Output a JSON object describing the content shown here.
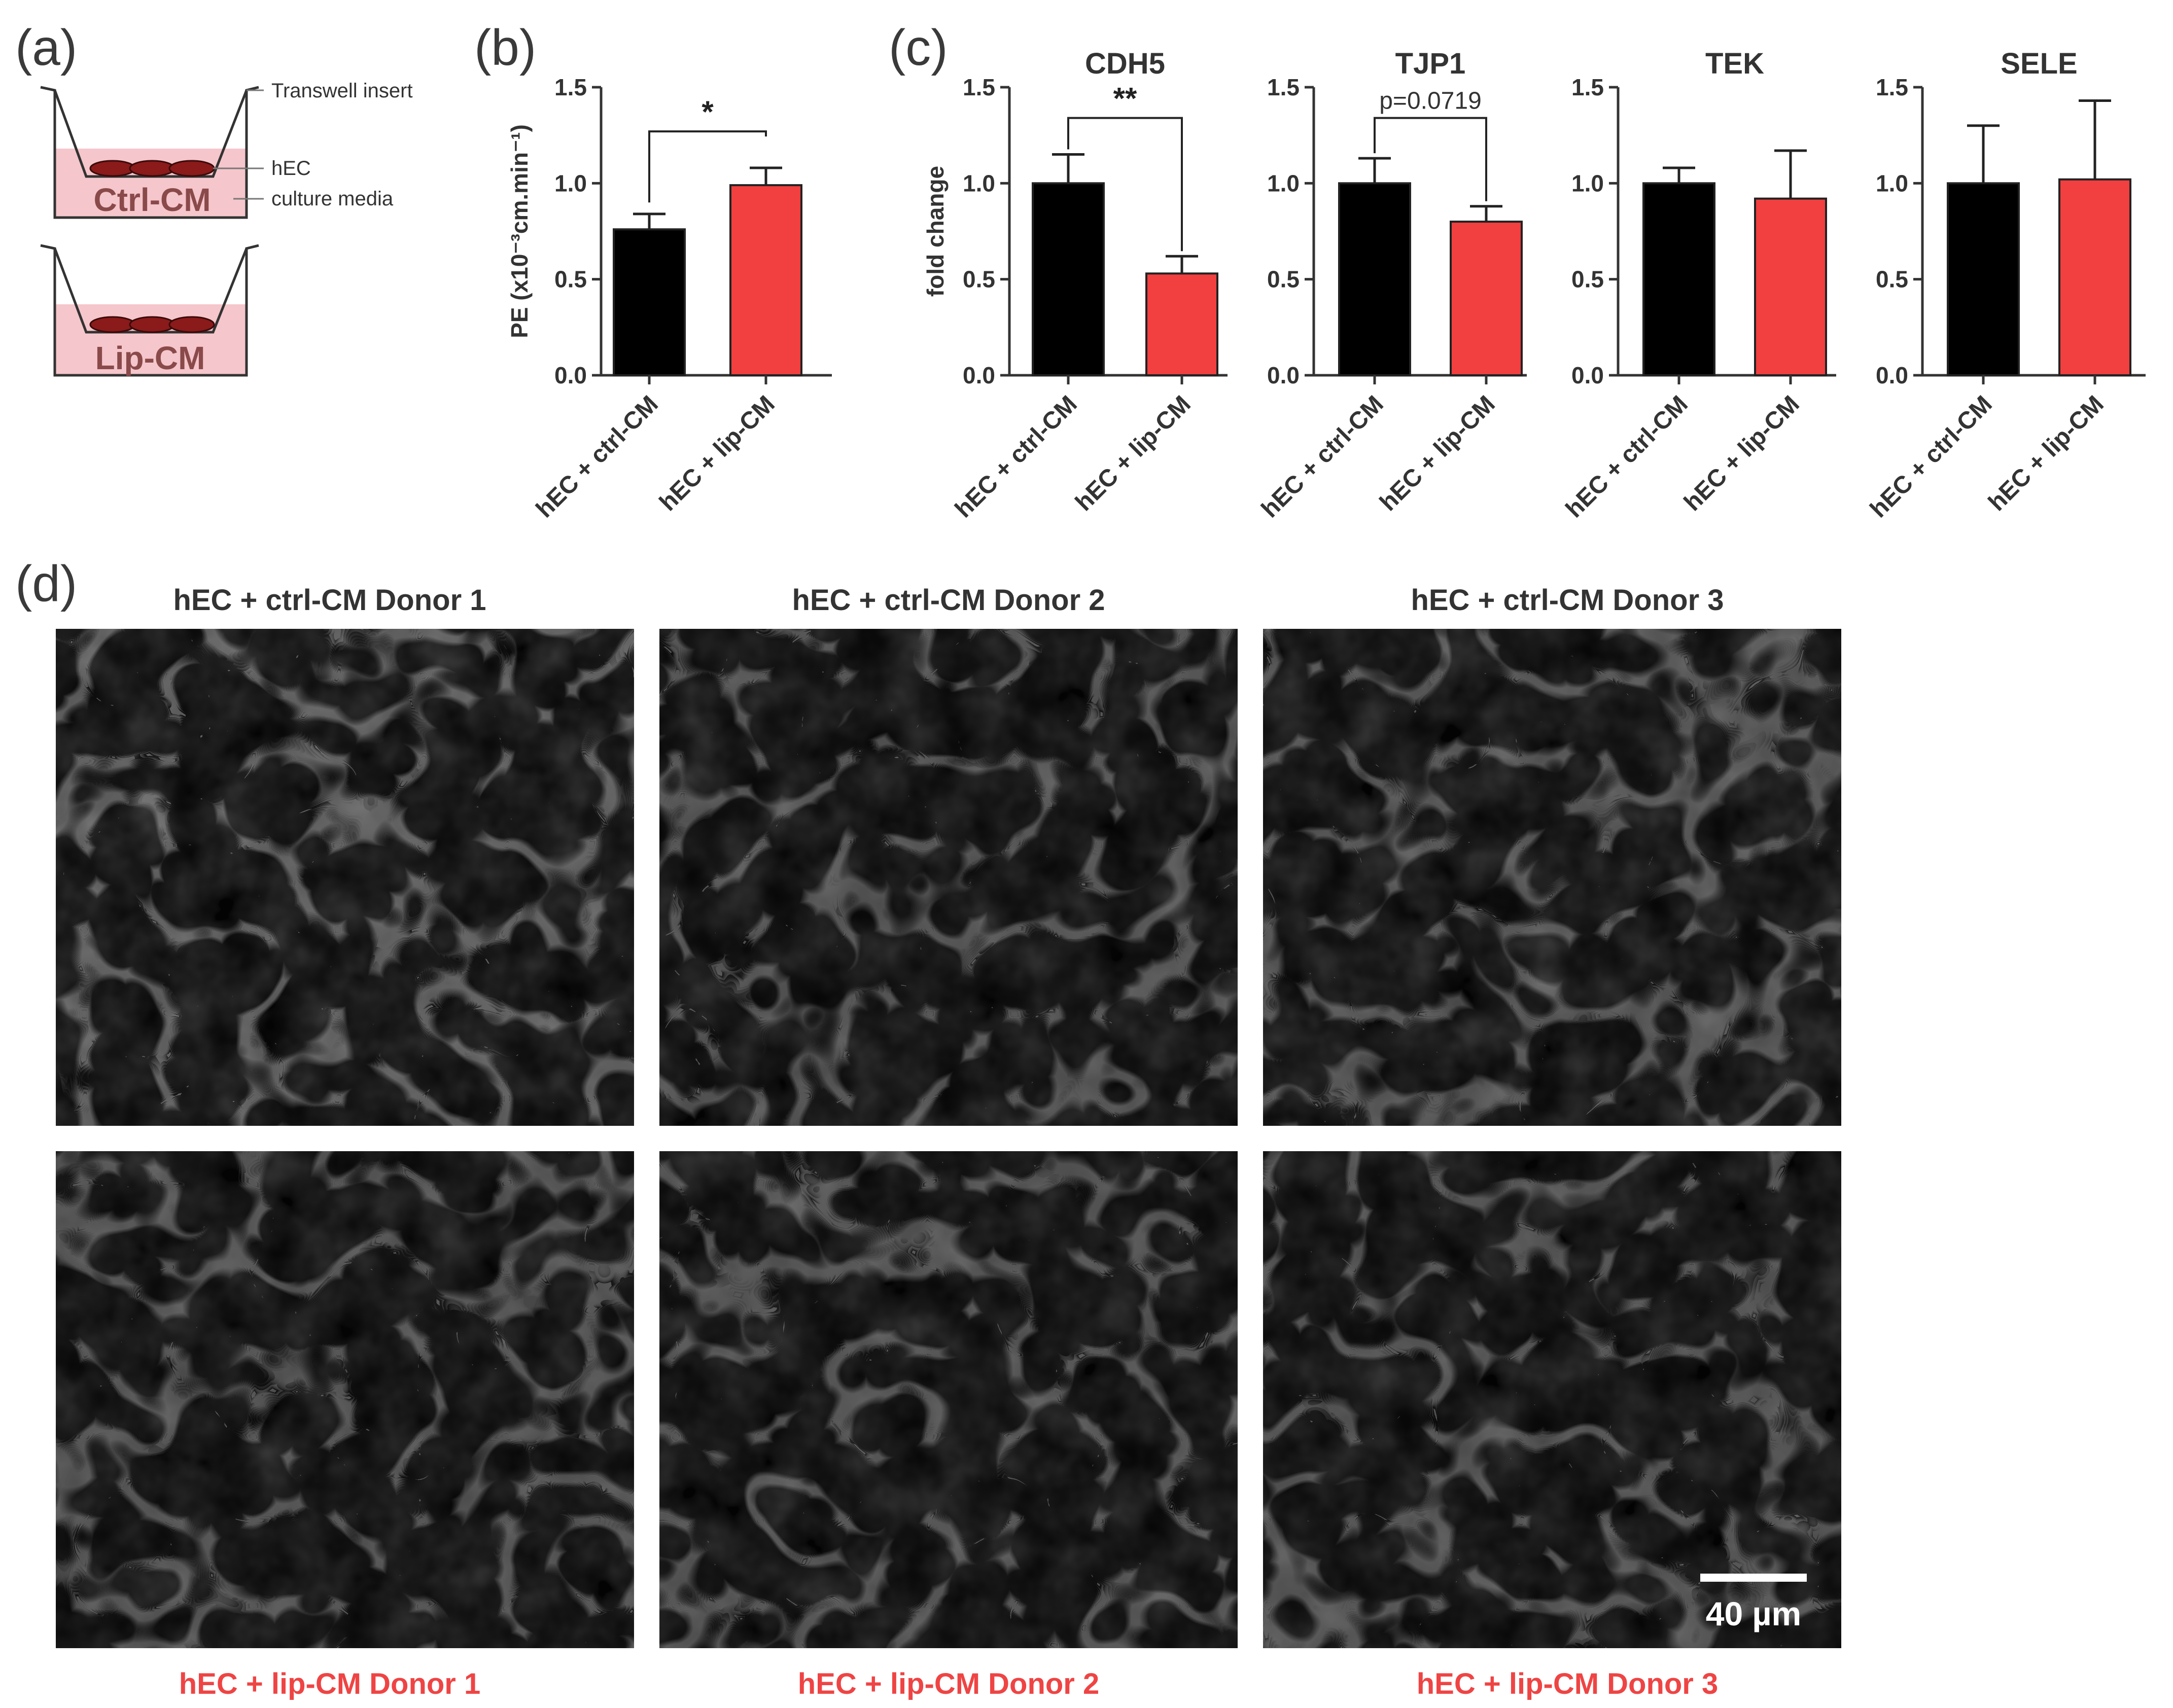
{
  "panels": {
    "a": "(a)",
    "b": "(b)",
    "c": "(c)",
    "d": "(d)"
  },
  "diagram": {
    "transwell_label": "Transwell insert",
    "hec_label": "hEC",
    "media_label": "culture media",
    "top_condition": "Ctrl-CM",
    "bottom_condition": "Lip-CM"
  },
  "colors": {
    "ctrl": "#000000",
    "lip": "#f23f3f",
    "media": "#f5c6cb",
    "cell": "#8b1a1a"
  },
  "chart_data": [
    {
      "type": "bar",
      "panel": "b",
      "ylabel": "PE (x10⁻³cm.min⁻¹)",
      "ylim": [
        0,
        1.5
      ],
      "yticks": [
        "0.0",
        "0.5",
        "1.0",
        "1.5"
      ],
      "categories": [
        "hEC + ctrl-CM",
        "hEC + lip-CM"
      ],
      "values": [
        0.76,
        0.99
      ],
      "errors": [
        0.08,
        0.09
      ],
      "significance": "*"
    },
    {
      "type": "bar",
      "panel": "c",
      "title": "CDH5",
      "ylabel": "fold change",
      "ylim": [
        0,
        1.5
      ],
      "yticks": [
        "0.0",
        "0.5",
        "1.0",
        "1.5"
      ],
      "categories": [
        "hEC + ctrl-CM",
        "hEC + lip-CM"
      ],
      "values": [
        1.0,
        0.53
      ],
      "errors": [
        0.15,
        0.09
      ],
      "significance": "**"
    },
    {
      "type": "bar",
      "panel": "c",
      "title": "TJP1",
      "ylim": [
        0,
        1.5
      ],
      "yticks": [
        "0.0",
        "0.5",
        "1.0",
        "1.5"
      ],
      "categories": [
        "hEC + ctrl-CM",
        "hEC + lip-CM"
      ],
      "values": [
        1.0,
        0.8
      ],
      "errors": [
        0.13,
        0.08
      ],
      "significance": "p=0.0719"
    },
    {
      "type": "bar",
      "panel": "c",
      "title": "TEK",
      "ylim": [
        0,
        1.5
      ],
      "yticks": [
        "0.0",
        "0.5",
        "1.0",
        "1.5"
      ],
      "categories": [
        "hEC + ctrl-CM",
        "hEC + lip-CM"
      ],
      "values": [
        1.0,
        0.92
      ],
      "errors": [
        0.08,
        0.25
      ],
      "significance": ""
    },
    {
      "type": "bar",
      "panel": "c",
      "title": "SELE",
      "ylim": [
        0,
        1.5
      ],
      "yticks": [
        "0.0",
        "0.5",
        "1.0",
        "1.5"
      ],
      "categories": [
        "hEC + ctrl-CM",
        "hEC + lip-CM"
      ],
      "values": [
        1.0,
        1.02
      ],
      "errors": [
        0.3,
        0.41
      ],
      "significance": ""
    }
  ],
  "micrographs": {
    "top": [
      "hEC + ctrl-CM Donor 1",
      "hEC + ctrl-CM Donor 2",
      "hEC + ctrl-CM Donor 3"
    ],
    "bottom": [
      "hEC + lip-CM Donor 1",
      "hEC + lip-CM Donor 2",
      "hEC + lip-CM Donor 3"
    ],
    "scale_bar": "40 µm"
  }
}
